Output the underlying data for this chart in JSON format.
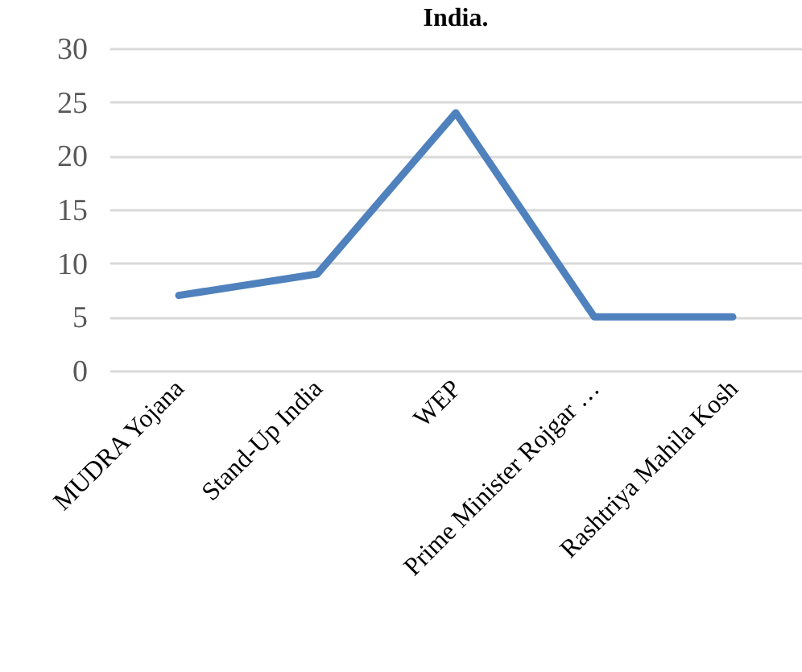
{
  "chart_data": {
    "type": "line",
    "title": "India.",
    "categories": [
      "MUDRA Yojana",
      "Stand-Up India",
      "WEP",
      "Prime Minister Rojgar …",
      "Rashtriya Mahila Kosh"
    ],
    "series": [
      {
        "color": "#4f81bd",
        "values": [
          7,
          9,
          24,
          5,
          5
        ]
      }
    ],
    "ylim": [
      0,
      30
    ],
    "yticks": [
      0,
      5,
      10,
      15,
      20,
      25,
      30
    ],
    "grid": "y",
    "marker": "none",
    "line_style": "solid"
  }
}
